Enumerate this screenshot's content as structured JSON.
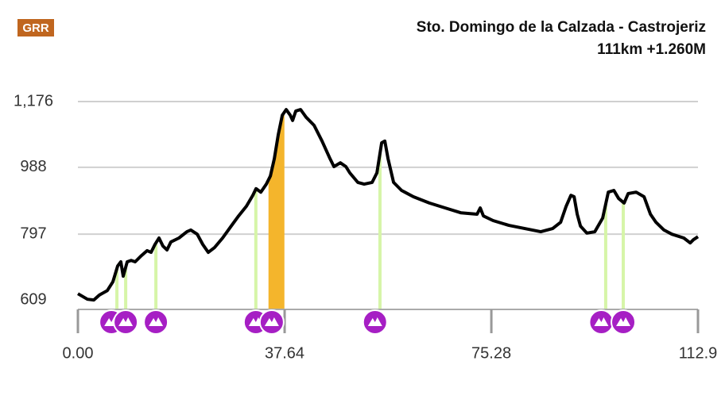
{
  "chart_data": {
    "type": "line",
    "logo": "GRR",
    "title": "Sto. Domingo de la Calzada - Castrojeriz",
    "subtitle": "111km +1.260M",
    "x": [
      0,
      1.74,
      2.9,
      3.91,
      5.36,
      6.37,
      7.24,
      7.82,
      8.25,
      8.98,
      9.7,
      10.42,
      11.58,
      12.6,
      13.32,
      14.04,
      14.77,
      15.49,
      16.22,
      16.94,
      18.39,
      19.84,
      20.56,
      21.72,
      22.73,
      23.74,
      24.9,
      26.35,
      27.8,
      29.25,
      30.69,
      31.85,
      32.43,
      33.3,
      34.31,
      35.04,
      35.76,
      36.48,
      37.21,
      37.93,
      38.66,
      39.09,
      39.67,
      40.54,
      41.55,
      43,
      44.45,
      45.9,
      46.62,
      47.78,
      48.79,
      49.52,
      50.96,
      52.12,
      53.57,
      54.44,
      55.31,
      55.89,
      56.46,
      57.48,
      58.93,
      61.1,
      63.99,
      66.89,
      69.78,
      72.68,
      73.26,
      73.84,
      75.58,
      78.48,
      81.37,
      84.27,
      86.44,
      87.89,
      88.9,
      89.77,
      90.35,
      90.92,
      91.5,
      92.66,
      94.11,
      95.55,
      96.57,
      97.58,
      98.45,
      99.46,
      100.19,
      101.64,
      103.08,
      104.24,
      105.26,
      106.7,
      108.15,
      110.32,
      111.48,
      112.06,
      112.9
    ],
    "values": [
      627,
      611,
      609,
      623,
      636,
      661,
      706,
      718,
      677,
      718,
      722,
      718,
      736,
      750,
      745,
      768,
      786,
      763,
      752,
      775,
      786,
      804,
      809,
      797,
      768,
      745,
      759,
      786,
      818,
      849,
      877,
      908,
      927,
      917,
      940,
      963,
      1013,
      1081,
      1137,
      1153,
      1137,
      1122,
      1149,
      1153,
      1131,
      1108,
      1063,
      1013,
      990,
      1001,
      990,
      972,
      945,
      940,
      945,
      972,
      1058,
      1063,
      1013,
      945,
      922,
      904,
      886,
      872,
      858,
      854,
      872,
      849,
      836,
      822,
      813,
      804,
      813,
      831,
      877,
      908,
      904,
      854,
      820,
      800,
      804,
      843,
      917,
      922,
      899,
      886,
      913,
      917,
      904,
      854,
      831,
      809,
      797,
      786,
      772,
      781,
      790
    ],
    "color": "#000000",
    "climbs": [
      7.1,
      8.7,
      14.2,
      32.4,
      55.0,
      96.1,
      99.3
    ],
    "climb_color": "#d6f5a8",
    "highlight": [
      34.7,
      37.6
    ],
    "highlight_color": "#f4b52c",
    "markers": [
      6.1,
      8.7,
      14.2,
      32.4,
      35.3,
      54.1,
      95.3,
      99.3
    ],
    "marker_color": "#a61fc4",
    "xlim": [
      0,
      112.9
    ],
    "ylim": [
      582,
      1176
    ],
    "xticks": [
      {
        "value": 0,
        "label": "0.00"
      },
      37.64,
      75.28,
      112.9
    ],
    "yticks": [
      609,
      797,
      988,
      {
        "value": 1176,
        "label": "1,176"
      }
    ],
    "grid": true
  }
}
